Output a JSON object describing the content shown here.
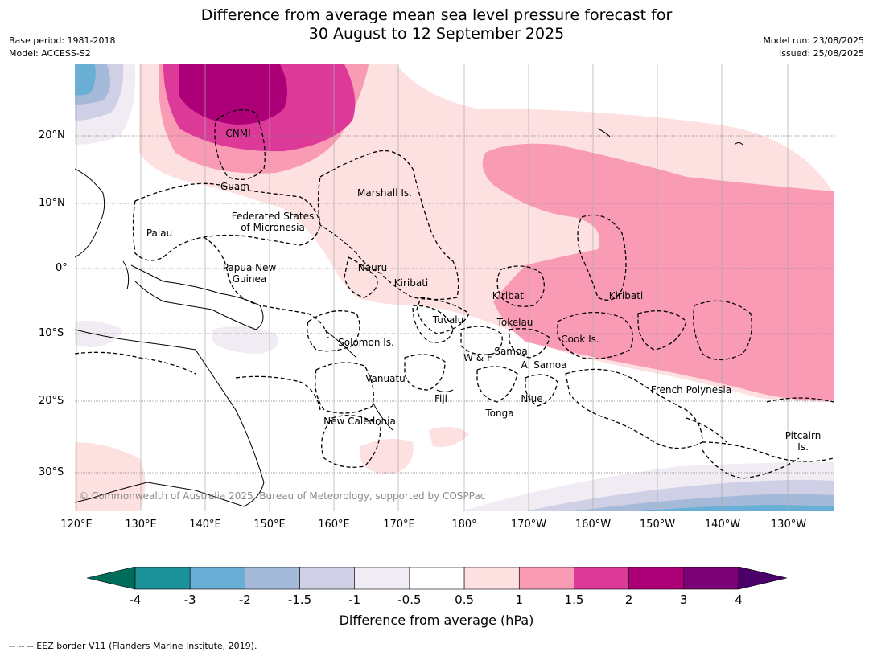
{
  "title_line1": "Difference from average mean sea level pressure forecast for",
  "title_line2": "30 August to 12 September 2025",
  "base_period": "Base period: 1981-2018",
  "model": "Model: ACCESS-S2",
  "model_run": "Model run: 23/08/2025",
  "issued": "Issued: 25/08/2025",
  "copyright": "© Commonwealth of Australia 2025, Bureau of Meteorology, supported by COSPPac",
  "lat_labels": [
    "20°N",
    "10°N",
    "0°",
    "10°S",
    "20°S",
    "30°S"
  ],
  "lon_labels": [
    "120°E",
    "130°E",
    "140°E",
    "150°E",
    "160°E",
    "170°E",
    "180°",
    "170°W",
    "160°W",
    "150°W",
    "140°W",
    "130°W"
  ],
  "places": {
    "cnmi": "CNMI",
    "guam": "Guam",
    "marshall": "Marshall Is.",
    "fsm1": "Federated States",
    "fsm2": "of Micronesia",
    "palau": "Palau",
    "png1": "Papua New",
    "png2": "Guinea",
    "nauru": "Nauru",
    "kiribati_w": "Kiribati",
    "kiribati_c": "Kiribati",
    "kiribati_e": "Kiribati",
    "tuvalu": "Tuvalu",
    "tokelau": "Tokelau",
    "cook": "Cook Is.",
    "solomon": "Solomon Is.",
    "wf": "W & F",
    "samoa": "Samoa",
    "asamoa": "A. Samoa",
    "vanuatu": "Vanuatu",
    "fiji": "Fiji",
    "niue": "Niue",
    "tonga": "Tonga",
    "french_polynesia": "French Polynesia",
    "new_caledonia": "New Caledonia",
    "pitcairn1": "Pitcairn",
    "pitcairn2": "Is."
  },
  "colorbar": {
    "ticks": [
      "-4",
      "-3",
      "-2",
      "-1.5",
      "-1",
      "-0.5",
      "0.5",
      "1",
      "1.5",
      "2",
      "3",
      "4"
    ],
    "colors": [
      "#1b9299",
      "#69aed4",
      "#a5b9d8",
      "#cfcfe6",
      "#f1ecf3",
      "#ffffff",
      "#fde0e0",
      "#f99bb4",
      "#dc3999",
      "#ad0078",
      "#7a0176"
    ],
    "under_color": "#006d5a",
    "over_color": "#4a0068",
    "label": "Difference from average (hPa)"
  },
  "footnote": "--  --  -- EEZ border V11 (Flanders Marine Institute, 2019)."
}
